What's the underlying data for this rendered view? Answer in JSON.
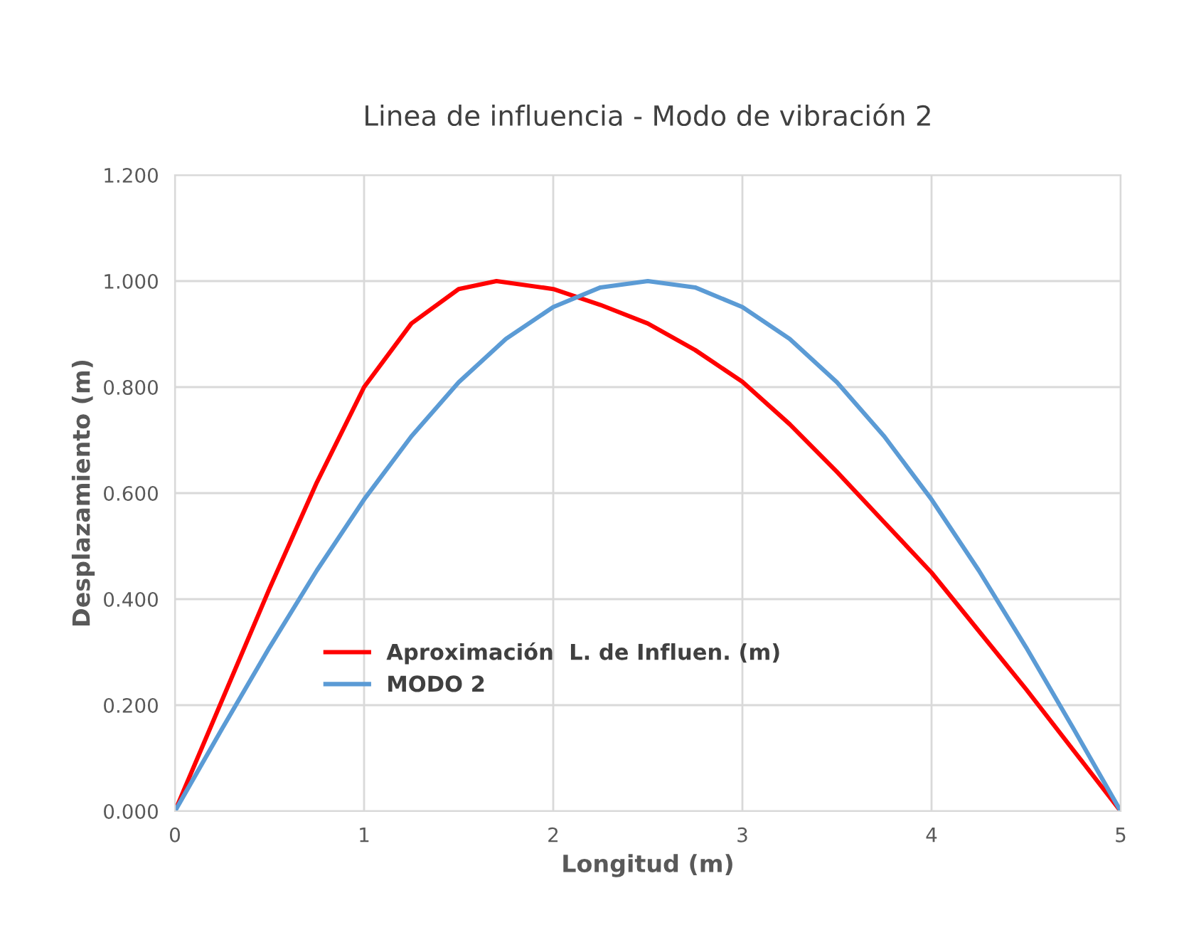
{
  "chart_data": {
    "type": "line",
    "title": "Linea de influencia - Modo de vibración 2",
    "xlabel": "Longitud (m)",
    "ylabel": "Desplazamiento (m)",
    "xlim": [
      0,
      5
    ],
    "xticks": [
      0,
      1,
      2,
      3,
      4,
      5
    ],
    "ylim": [
      0,
      1.2
    ],
    "yticks": [
      {
        "value": 0,
        "label": "0.000"
      },
      {
        "value": 0.2,
        "label": "0.200"
      },
      {
        "value": 0.4,
        "label": "0.400"
      },
      {
        "value": 0.6,
        "label": "0.600"
      },
      {
        "value": 0.8,
        "label": "0.800"
      },
      {
        "value": 1.0,
        "label": "1.000"
      },
      {
        "value": 1.2,
        "label": "1.200"
      }
    ],
    "grid": true,
    "legend": "lower center",
    "marker": "none",
    "line_style": "solid",
    "series": [
      {
        "name": "Aproximación  L. de Influen. (m)",
        "color": "#ff0000",
        "x": [
          0,
          0.25,
          0.5,
          0.75,
          1,
          1.25,
          1.5,
          1.7,
          2,
          2.25,
          2.5,
          2.75,
          3,
          3.25,
          3.5,
          3.75,
          4,
          4.25,
          4.5,
          4.75,
          5
        ],
        "values": [
          0,
          0.21,
          0.42,
          0.62,
          0.8,
          0.92,
          0.985,
          1.0,
          0.985,
          0.955,
          0.92,
          0.87,
          0.81,
          0.73,
          0.64,
          0.545,
          0.45,
          0.34,
          0.23,
          0.115,
          0
        ]
      },
      {
        "name": "MODO 2",
        "color": "#5b9bd5",
        "x": [
          0,
          0.25,
          0.5,
          0.75,
          1,
          1.25,
          1.5,
          1.75,
          2,
          2.25,
          2.5,
          2.75,
          3,
          3.25,
          3.5,
          3.75,
          4,
          4.25,
          4.5,
          4.75,
          5
        ],
        "values": [
          0,
          0.156,
          0.309,
          0.454,
          0.588,
          0.707,
          0.809,
          0.891,
          0.951,
          0.988,
          1.0,
          0.988,
          0.951,
          0.891,
          0.809,
          0.707,
          0.588,
          0.454,
          0.309,
          0.156,
          0
        ]
      }
    ]
  }
}
